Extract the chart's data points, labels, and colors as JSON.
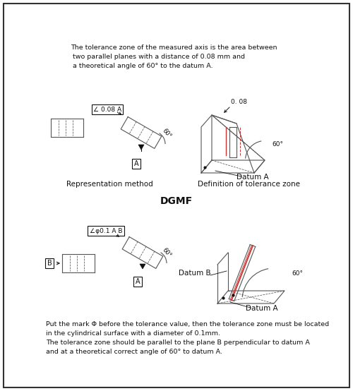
{
  "bg_color": "#ffffff",
  "border_color": "#333333",
  "text_top1": "The tolerance zone of the measured axis is the area between",
  "text_top2": " two parallel planes with a distance of 0.08 mm and",
  "text_top3": " a theoretical angle of 60° to the datum A.",
  "label_rep": "Representation method",
  "label_def": "Definition of tolerance zone",
  "label_dgmf": "DGMF",
  "label_datumA": "Datum A",
  "label_datumB": "Datum B",
  "tol_box1": "∠ 0.08 A",
  "tol_box2": "∠φ0.1 A B",
  "angle_60": "60°",
  "val_008": "0. 08",
  "text_bottom1": "Put the mark Φ before the tolerance value, then the tolerance zone must be located",
  "text_bottom2": "in the cylindrical surface with a diameter of 0.1mm.",
  "text_bottom3": "The tolerance zone should be parallel to the plane B perpendicular to datum A",
  "text_bottom4": "and at a theoretical correct angle of 60° to datum A.",
  "fig_width": 5.0,
  "fig_height": 5.54
}
